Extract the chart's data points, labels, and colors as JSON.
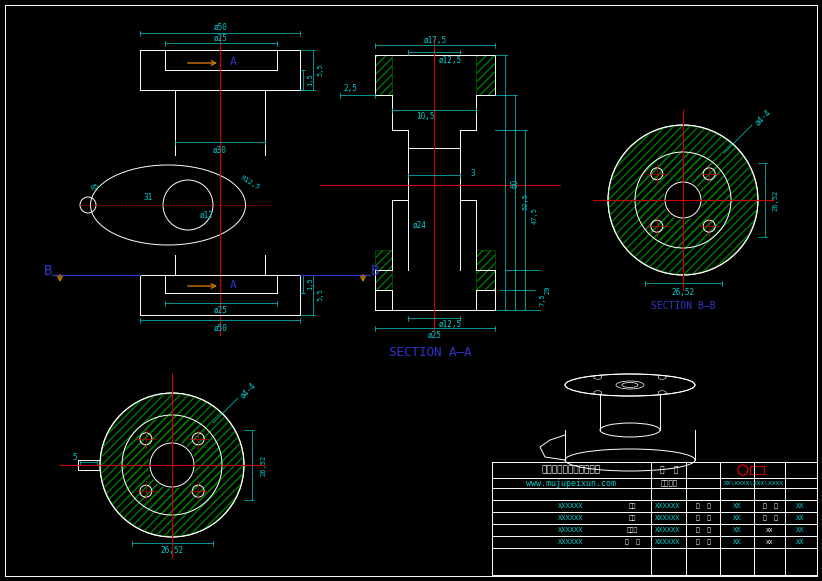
{
  "bg_color": "#000000",
  "line_color": "#ffffff",
  "dim_color": "#00cccc",
  "red_color": "#cc0000",
  "orange_color": "#cc7700",
  "blue_color": "#3333cc",
  "green_color": "#007700",
  "section_aa": "SECTION A–A",
  "section_bb": "SECTION B–B",
  "company": "常州直利夹具数控工作室",
  "website": "www.mujupeixun.com"
}
